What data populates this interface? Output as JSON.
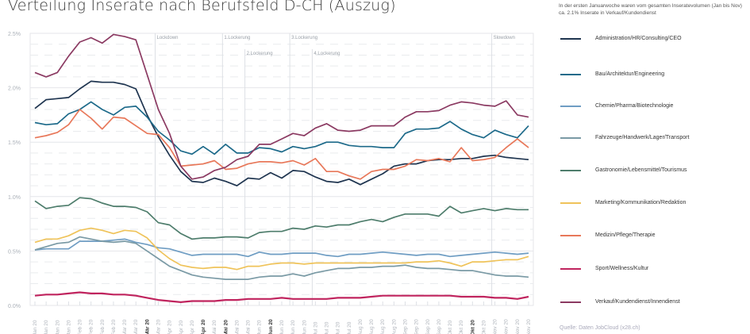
{
  "chart_data": {
    "type": "line",
    "title": "Verteilung Inserate nach Berufsfeld D-CH (Auszug)",
    "note": "In der ersten Januarwoche waren vom gesamten Inseratevolumen (Jan bis Nov) ca. 2.1% Inserate in Verkauf/Kundendienst",
    "source": "Quelle: Daten JobCloud (x28.ch)",
    "xlabel": "",
    "ylabel": "",
    "ylim": [
      0,
      2.5
    ],
    "yticks": [
      "0.0%",
      "0.5%",
      "1.0%",
      "1.5%",
      "2.0%",
      "2.5%"
    ],
    "grid": true,
    "legend_position": "right",
    "x": [
      "Jan 20",
      "Jan 20",
      "Jan 20",
      "Jan 20",
      "Feb 20",
      "Feb 20",
      "Feb 20",
      "Feb 20",
      "Mar 20",
      "Mar 20",
      "Mär 20",
      "Mar 20",
      "Apr 20",
      "Apr 20",
      "Apr 20",
      "Apr 20",
      "Mai 20",
      "Mai 20",
      "Mai 20",
      "Mai 20",
      "Jun 20",
      "Jun 20",
      "Jun 20",
      "Jun 20",
      "Jun 20",
      "Jul 20",
      "Jul 20",
      "Jul 20",
      "Jul 20",
      "Aug 20",
      "Aug 20",
      "Aug 20",
      "Aug 20",
      "Sep 20",
      "Sep 20",
      "Sep 20",
      "Sep 20",
      "Okt 20",
      "Okt 20",
      "Okt 20",
      "Okt 20",
      "Nov 20",
      "Nov 20",
      "Nov 20",
      "Nov 20"
    ],
    "bold_ticks": [
      10,
      15,
      17,
      21,
      39
    ],
    "annotations": [
      {
        "label": "Lockdown",
        "index": 11,
        "row": 0
      },
      {
        "label": "1.Lockerung",
        "index": 17,
        "row": 0
      },
      {
        "label": "2.Lockerung",
        "index": 19,
        "row": 1
      },
      {
        "label": "3.Lockerung",
        "index": 23,
        "row": 0
      },
      {
        "label": "4.Lockerung",
        "index": 25,
        "row": 1
      },
      {
        "label": "Slowdown",
        "index": 41,
        "row": 0
      }
    ],
    "series": [
      {
        "name": "Administration/HR/Consulting/CEO",
        "color": "#1f3550",
        "values": [
          1.81,
          1.89,
          1.9,
          1.91,
          1.99,
          2.06,
          2.05,
          2.05,
          2.03,
          1.99,
          1.75,
          1.55,
          1.38,
          1.23,
          1.14,
          1.13,
          1.17,
          1.14,
          1.1,
          1.17,
          1.16,
          1.22,
          1.17,
          1.24,
          1.23,
          1.18,
          1.14,
          1.13,
          1.16,
          1.11,
          1.16,
          1.21,
          1.28,
          1.3,
          1.3,
          1.33,
          1.34,
          1.34,
          1.35,
          1.35,
          1.37,
          1.38,
          1.36,
          1.35,
          1.34
        ]
      },
      {
        "name": "Bau/Architektur/Engineering",
        "color": "#1d6a8a",
        "values": [
          1.68,
          1.66,
          1.67,
          1.76,
          1.8,
          1.87,
          1.8,
          1.75,
          1.82,
          1.83,
          1.73,
          1.6,
          1.52,
          1.42,
          1.39,
          1.46,
          1.39,
          1.48,
          1.4,
          1.4,
          1.45,
          1.44,
          1.41,
          1.46,
          1.44,
          1.46,
          1.5,
          1.5,
          1.47,
          1.46,
          1.46,
          1.45,
          1.45,
          1.58,
          1.62,
          1.62,
          1.63,
          1.69,
          1.62,
          1.57,
          1.54,
          1.61,
          1.57,
          1.54,
          1.65
        ]
      },
      {
        "name": "Chemie/Pharma/Biotechnologie",
        "color": "#6f9dc3",
        "values": [
          0.51,
          0.52,
          0.52,
          0.52,
          0.59,
          0.59,
          0.59,
          0.6,
          0.61,
          0.58,
          0.56,
          0.53,
          0.52,
          0.49,
          0.46,
          0.47,
          0.47,
          0.47,
          0.47,
          0.45,
          0.49,
          0.47,
          0.47,
          0.48,
          0.48,
          0.48,
          0.46,
          0.45,
          0.47,
          0.47,
          0.48,
          0.49,
          0.48,
          0.47,
          0.46,
          0.47,
          0.47,
          0.45,
          0.46,
          0.47,
          0.48,
          0.49,
          0.48,
          0.47,
          0.48
        ]
      },
      {
        "name": "Fahrzeuge/Handwerk/Lager/Transport",
        "color": "#7a9aa5",
        "values": [
          0.51,
          0.54,
          0.57,
          0.58,
          0.63,
          0.61,
          0.59,
          0.58,
          0.59,
          0.57,
          0.5,
          0.43,
          0.36,
          0.32,
          0.28,
          0.26,
          0.25,
          0.24,
          0.24,
          0.24,
          0.26,
          0.27,
          0.27,
          0.29,
          0.27,
          0.3,
          0.32,
          0.34,
          0.34,
          0.35,
          0.35,
          0.36,
          0.36,
          0.37,
          0.35,
          0.34,
          0.34,
          0.33,
          0.32,
          0.32,
          0.3,
          0.28,
          0.27,
          0.27,
          0.26
        ]
      },
      {
        "name": "Gastronomie/Lebensmittel/Tourismus",
        "color": "#4e7d6c",
        "values": [
          0.96,
          0.89,
          0.91,
          0.92,
          0.99,
          0.98,
          0.94,
          0.91,
          0.91,
          0.9,
          0.86,
          0.76,
          0.74,
          0.66,
          0.61,
          0.62,
          0.62,
          0.63,
          0.63,
          0.62,
          0.67,
          0.68,
          0.68,
          0.71,
          0.7,
          0.73,
          0.72,
          0.74,
          0.74,
          0.77,
          0.79,
          0.77,
          0.81,
          0.84,
          0.84,
          0.84,
          0.82,
          0.91,
          0.85,
          0.87,
          0.89,
          0.87,
          0.89,
          0.88,
          0.88
        ]
      },
      {
        "name": "Marketing/Kommunikation/Redaktion",
        "color": "#efc35a",
        "values": [
          0.58,
          0.61,
          0.61,
          0.64,
          0.69,
          0.71,
          0.69,
          0.66,
          0.69,
          0.68,
          0.62,
          0.51,
          0.43,
          0.37,
          0.35,
          0.34,
          0.35,
          0.35,
          0.33,
          0.36,
          0.36,
          0.38,
          0.39,
          0.39,
          0.38,
          0.39,
          0.39,
          0.39,
          0.39,
          0.39,
          0.39,
          0.39,
          0.39,
          0.39,
          0.4,
          0.4,
          0.41,
          0.39,
          0.36,
          0.4,
          0.4,
          0.41,
          0.42,
          0.42,
          0.45
        ]
      },
      {
        "name": "Medizin/Pflege/Therapie",
        "color": "#e8785a",
        "values": [
          1.54,
          1.56,
          1.59,
          1.66,
          1.8,
          1.72,
          1.62,
          1.73,
          1.72,
          1.65,
          1.58,
          1.57,
          1.45,
          1.28,
          1.29,
          1.3,
          1.33,
          1.25,
          1.26,
          1.3,
          1.32,
          1.32,
          1.31,
          1.33,
          1.29,
          1.35,
          1.23,
          1.23,
          1.19,
          1.16,
          1.23,
          1.25,
          1.25,
          1.28,
          1.34,
          1.33,
          1.35,
          1.32,
          1.45,
          1.33,
          1.34,
          1.36,
          1.45,
          1.53,
          1.45
        ]
      },
      {
        "name": "Sport/Wellness/Kultur",
        "color": "#c0245e",
        "values": [
          0.09,
          0.1,
          0.1,
          0.11,
          0.12,
          0.11,
          0.11,
          0.1,
          0.1,
          0.09,
          0.07,
          0.05,
          0.04,
          0.03,
          0.04,
          0.04,
          0.04,
          0.05,
          0.05,
          0.06,
          0.06,
          0.06,
          0.07,
          0.06,
          0.06,
          0.06,
          0.06,
          0.07,
          0.07,
          0.07,
          0.08,
          0.09,
          0.09,
          0.09,
          0.09,
          0.09,
          0.09,
          0.09,
          0.08,
          0.08,
          0.08,
          0.07,
          0.07,
          0.06,
          0.08
        ]
      },
      {
        "name": "Verkauf/Kundendienst/Innendienst",
        "color": "#8b3a62",
        "values": [
          2.14,
          2.1,
          2.14,
          2.29,
          2.42,
          2.46,
          2.41,
          2.49,
          2.47,
          2.44,
          2.12,
          1.8,
          1.58,
          1.28,
          1.16,
          1.18,
          1.24,
          1.27,
          1.34,
          1.37,
          1.48,
          1.48,
          1.53,
          1.58,
          1.56,
          1.63,
          1.67,
          1.61,
          1.6,
          1.61,
          1.65,
          1.65,
          1.65,
          1.73,
          1.78,
          1.78,
          1.79,
          1.84,
          1.87,
          1.86,
          1.84,
          1.83,
          1.88,
          1.75,
          1.73
        ]
      }
    ]
  }
}
